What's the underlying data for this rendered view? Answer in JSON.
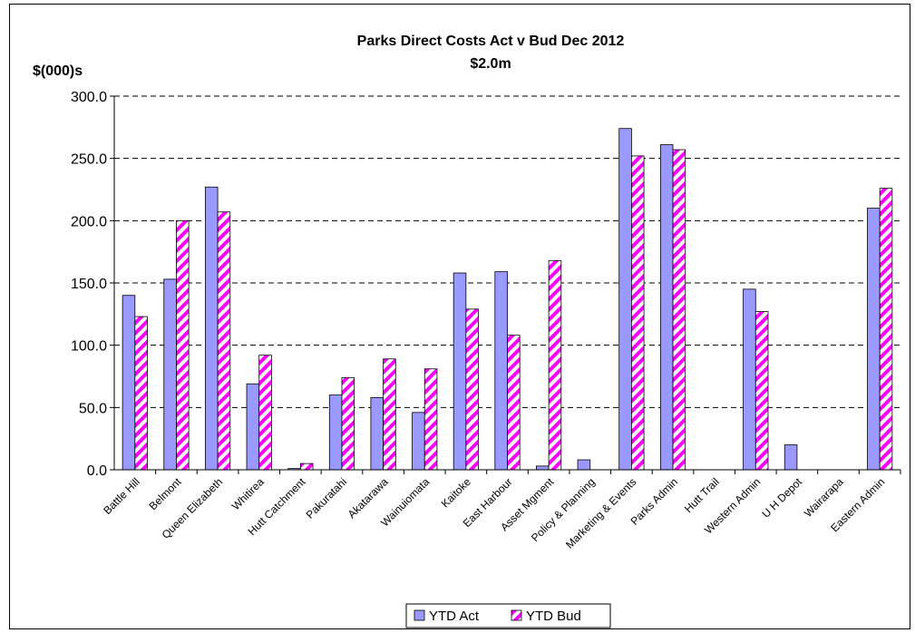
{
  "chart_data": {
    "type": "bar",
    "title": "Parks Direct Costs Act v Bud Dec 2012",
    "subtitle": "$2.0m",
    "ylabel": "$(000)s",
    "xlabel": "",
    "ylim": [
      0,
      300
    ],
    "yticks": [
      "0.0",
      "50.0",
      "100.0",
      "150.0",
      "200.0",
      "250.0",
      "300.0"
    ],
    "grid": true,
    "legend_position": "bottom",
    "categories": [
      "Battle Hill",
      "Belmont",
      "Queen Elizabeth",
      "Whitirea",
      "Hutt Catchment",
      "Pakuratahi",
      "Akatarawa",
      "Wainuiomata",
      "Kaitoke",
      "East Harbour",
      "Asset Mgment",
      "Policy & Planning",
      "Marketing & Events",
      "Parks Admin",
      "Hutt Trail",
      "Western Admin",
      "U H Depot",
      "Wairarapa",
      "Eastern  Admin"
    ],
    "series": [
      {
        "name": "YTD Act",
        "color": "#9999ff",
        "values": [
          140,
          153,
          227,
          69,
          1,
          60,
          58,
          46,
          158,
          159,
          3,
          8,
          274,
          261,
          0,
          145,
          20,
          0,
          210
        ]
      },
      {
        "name": "YTD Bud",
        "color": "#ff00ff",
        "values": [
          123,
          200,
          207,
          92,
          5,
          74,
          89,
          81,
          129,
          108,
          168,
          0,
          252,
          257,
          0,
          127,
          0,
          0,
          226
        ]
      }
    ]
  }
}
